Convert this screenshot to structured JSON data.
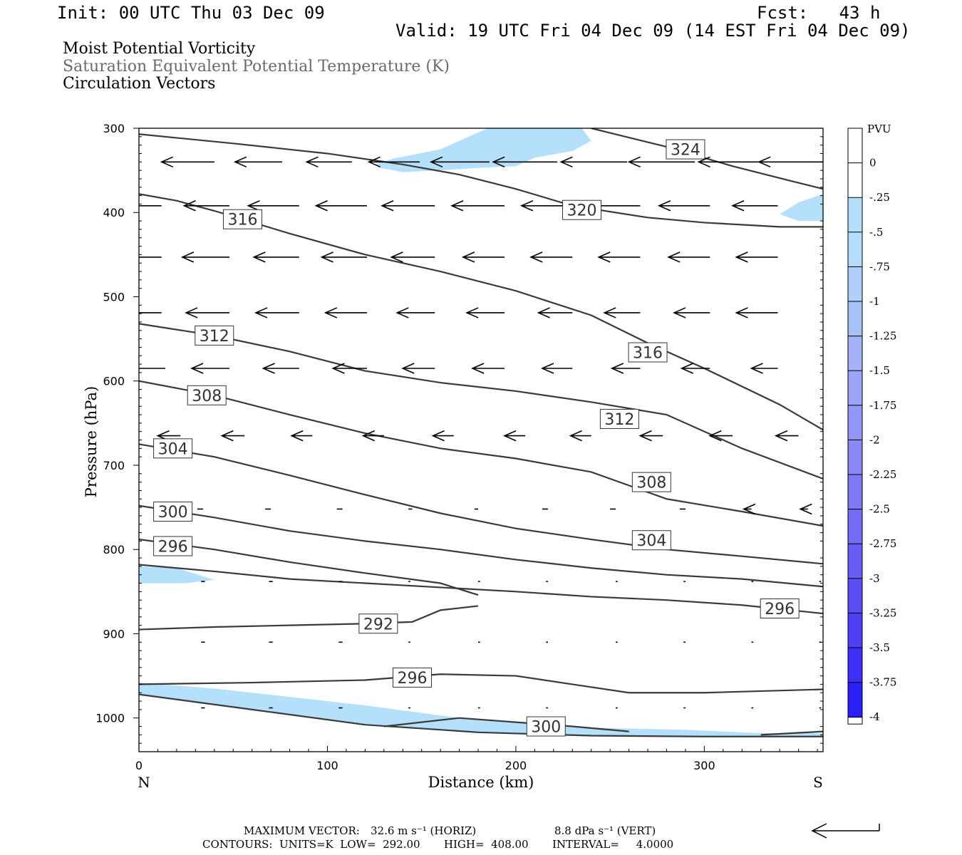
{
  "header": {
    "init": "Init: 00 UTC Thu 03 Dec 09",
    "fcst": "Fcst:   43 h",
    "valid": "Valid: 19 UTC Fri 04 Dec 09 (14 EST Fri 04 Dec 09)"
  },
  "titles": {
    "line1": "Moist Potential Vorticity",
    "line2": "Saturation Equivalent Potential Temperature (K)",
    "line3": "Circulation Vectors"
  },
  "footer": {
    "max_vector_label": "MAXIMUM VECTOR:",
    "max_vector_horiz": "32.6 m s⁻¹ (HORIZ)",
    "max_vector_vert": "8.8 dPa s⁻¹ (VERT)",
    "contours": "CONTOURS:  UNITS=K  LOW=  292.00       HIGH=  408.00       INTERVAL=     4.0000"
  },
  "colors": {
    "contour": "#3a3a3a",
    "pv_fill": "#b4e0fb",
    "arrow": "#000000",
    "title_gray": "#6a6a6a"
  },
  "chart_data": {
    "type": "cross-section",
    "xlabel": "Distance (km)",
    "ylabel": "Pressure (hPa)",
    "xlim": [
      0,
      363
    ],
    "ylim": [
      1040,
      300
    ],
    "x_ticks": [
      0,
      100,
      200,
      300
    ],
    "y_ticks": [
      300,
      400,
      500,
      600,
      700,
      800,
      900,
      1000
    ],
    "x_end_labels": {
      "left": "N",
      "right": "S"
    },
    "colorbar": {
      "unit": "PVU",
      "levels": [
        "0",
        "-.25",
        "-.5",
        "-.75",
        "-1",
        "-1.25",
        "-1.5",
        "-1.75",
        "-2",
        "-2.25",
        "-2.5",
        "-2.75",
        "-3",
        "-3.25",
        "-3.5",
        "-3.75",
        "-4"
      ],
      "colors": [
        "#ffffff",
        "#ffffff",
        "#b4e0fb",
        "#b4ddfb",
        "#b0cffa",
        "#a9c1f9",
        "#a2b3f8",
        "#9aa5f7",
        "#9297f6",
        "#8a88f5",
        "#8079f5",
        "#756bf4",
        "#695cf4",
        "#5c4df5",
        "#4e3ef6",
        "#3e2ff8",
        "#2a20fa",
        "#1010fc"
      ]
    },
    "contours": [
      {
        "label": "324",
        "points": [
          [
            240,
            300
          ],
          [
            280,
            322
          ],
          [
            315,
            345
          ],
          [
            345,
            362
          ],
          [
            363,
            372
          ]
        ],
        "label_at": [
          290,
          325
        ]
      },
      {
        "label": "320",
        "points": [
          [
            0,
            307
          ],
          [
            50,
            318
          ],
          [
            100,
            330
          ],
          [
            140,
            343
          ],
          [
            170,
            355
          ],
          [
            200,
            372
          ],
          [
            230,
            392
          ],
          [
            270,
            406
          ],
          [
            300,
            412
          ],
          [
            340,
            417
          ],
          [
            363,
            417
          ]
        ],
        "label_at": [
          235,
          397
        ]
      },
      {
        "label": "316",
        "points": [
          [
            0,
            378
          ],
          [
            20,
            386
          ],
          [
            40,
            398
          ],
          [
            80,
            425
          ],
          [
            120,
            450
          ],
          [
            160,
            470
          ],
          [
            200,
            493
          ],
          [
            240,
            522
          ],
          [
            270,
            555
          ],
          [
            300,
            585
          ],
          [
            340,
            628
          ],
          [
            363,
            658
          ]
        ],
        "label_at": [
          270,
          566
        ]
      },
      {
        "label": "316",
        "points": [],
        "label_at": [
          55,
          408
        ]
      },
      {
        "label": "312",
        "points": [
          [
            0,
            532
          ],
          [
            40,
            546
          ],
          [
            80,
            565
          ],
          [
            120,
            588
          ],
          [
            160,
            602
          ],
          [
            200,
            612
          ],
          [
            240,
            625
          ],
          [
            280,
            640
          ],
          [
            320,
            680
          ],
          [
            363,
            716
          ]
        ],
        "label_at": [
          40,
          546
        ]
      },
      {
        "label": "312",
        "points": [],
        "label_at": [
          255,
          645
        ]
      },
      {
        "label": "308",
        "points": [
          [
            0,
            600
          ],
          [
            40,
            617
          ],
          [
            80,
            640
          ],
          [
            120,
            662
          ],
          [
            160,
            680
          ],
          [
            200,
            692
          ],
          [
            240,
            708
          ],
          [
            280,
            740
          ],
          [
            320,
            755
          ],
          [
            363,
            772
          ]
        ],
        "label_at": [
          36,
          617
        ]
      },
      {
        "label": "308",
        "points": [],
        "label_at": [
          272,
          720
        ]
      },
      {
        "label": "304",
        "points": [
          [
            0,
            675
          ],
          [
            40,
            690
          ],
          [
            80,
            712
          ],
          [
            120,
            735
          ],
          [
            160,
            757
          ],
          [
            200,
            775
          ],
          [
            240,
            788
          ],
          [
            280,
            800
          ],
          [
            320,
            808
          ],
          [
            363,
            817
          ]
        ],
        "label_at": [
          18,
          680
        ]
      },
      {
        "label": "304",
        "points": [],
        "label_at": [
          272,
          789
        ]
      },
      {
        "label": "300",
        "points": [
          [
            0,
            748
          ],
          [
            40,
            762
          ],
          [
            80,
            778
          ],
          [
            120,
            790
          ],
          [
            160,
            800
          ],
          [
            200,
            812
          ],
          [
            240,
            822
          ],
          [
            280,
            830
          ],
          [
            320,
            835
          ],
          [
            363,
            844
          ]
        ],
        "label_at": [
          18,
          755
        ]
      },
      {
        "label": "296",
        "points": [
          [
            0,
            788
          ],
          [
            40,
            800
          ],
          [
            80,
            815
          ],
          [
            120,
            828
          ],
          [
            160,
            840
          ],
          [
            180,
            854
          ]
        ],
        "label_at": [
          18,
          796
        ]
      },
      {
        "label": "296",
        "points": [
          [
            0,
            818
          ],
          [
            40,
            826
          ],
          [
            80,
            835
          ],
          [
            120,
            840
          ],
          [
            160,
            845
          ],
          [
            200,
            850
          ],
          [
            240,
            856
          ],
          [
            280,
            860
          ],
          [
            320,
            866
          ],
          [
            363,
            876
          ]
        ],
        "label_at": [
          340,
          870
        ]
      },
      {
        "label": "292",
        "points": [
          [
            0,
            895
          ],
          [
            40,
            892
          ],
          [
            80,
            890
          ],
          [
            120,
            888
          ],
          [
            145,
            886
          ],
          [
            160,
            872
          ],
          [
            180,
            867
          ]
        ],
        "label_at": [
          127,
          888
        ]
      },
      {
        "label": "296",
        "points": [
          [
            0,
            960
          ],
          [
            60,
            958
          ],
          [
            120,
            955
          ],
          [
            160,
            948
          ],
          [
            200,
            950
          ],
          [
            230,
            960
          ],
          [
            260,
            970
          ],
          [
            300,
            970
          ],
          [
            363,
            966
          ]
        ],
        "label_at": [
          145,
          952
        ]
      },
      {
        "label": "300",
        "points": [
          [
            130,
            1010
          ],
          [
            170,
            1000
          ],
          [
            200,
            1005
          ],
          [
            230,
            1010
          ],
          [
            260,
            1016
          ]
        ],
        "label_at": [
          216,
          1010
        ]
      },
      {
        "label": "",
        "points": [
          [
            0,
            972
          ],
          [
            60,
            990
          ],
          [
            120,
            1008
          ],
          [
            180,
            1017
          ],
          [
            240,
            1021
          ],
          [
            300,
            1022
          ],
          [
            363,
            1022
          ]
        ],
        "label_at": null
      },
      {
        "label": "",
        "points": [
          [
            330,
            1020
          ],
          [
            363,
            1016
          ]
        ],
        "label_at": null
      }
    ],
    "pv_negative_regions": [
      [
        [
          125,
          343
        ],
        [
          135,
          336
        ],
        [
          160,
          325
        ],
        [
          165,
          320
        ],
        [
          185,
          300
        ],
        [
          235,
          300
        ],
        [
          240,
          315
        ],
        [
          230,
          327
        ],
        [
          210,
          335
        ],
        [
          200,
          345
        ],
        [
          180,
          347
        ],
        [
          160,
          350
        ],
        [
          140,
          352
        ],
        [
          128,
          347
        ]
      ],
      [
        [
          340,
          402
        ],
        [
          350,
          388
        ],
        [
          363,
          378
        ],
        [
          363,
          410
        ],
        [
          350,
          410
        ]
      ],
      [
        [
          0,
          820
        ],
        [
          20,
          822
        ],
        [
          40,
          836
        ],
        [
          25,
          840
        ],
        [
          0,
          840
        ]
      ],
      [
        [
          0,
          958
        ],
        [
          40,
          965
        ],
        [
          80,
          975
        ],
        [
          120,
          985
        ],
        [
          170,
          1000
        ],
        [
          230,
          1011
        ],
        [
          290,
          1014
        ],
        [
          330,
          1018
        ],
        [
          363,
          1018
        ],
        [
          363,
          1022
        ],
        [
          300,
          1022
        ],
        [
          240,
          1022
        ],
        [
          180,
          1018
        ],
        [
          120,
          1008
        ],
        [
          60,
          990
        ],
        [
          0,
          972
        ]
      ]
    ],
    "vectors": [
      {
        "x": [
          40,
          76,
          113,
          149,
          186,
          222,
          259,
          295,
          332,
          363
        ],
        "y": 340,
        "len": [
          -28,
          -25,
          -24,
          -27,
          -31,
          -34,
          -35,
          -35,
          -35,
          -34
        ]
      },
      {
        "x": [
          12,
          48,
          85,
          121,
          157,
          194,
          230,
          266,
          303,
          339
        ],
        "y": 392,
        "len": [
          -25,
          -24,
          -27,
          -27,
          -28,
          -28,
          -27,
          -27,
          -27,
          -24
        ]
      },
      {
        "x": [
          12,
          48,
          85,
          121,
          157,
          194,
          230,
          266,
          303,
          339
        ],
        "y": 453,
        "len": [
          -25,
          -25,
          -24,
          -24,
          -23,
          -22,
          -22,
          -22,
          -22,
          -22
        ]
      },
      {
        "x": [
          12,
          48,
          85,
          121,
          157,
          194,
          230,
          266,
          303,
          339
        ],
        "y": 519,
        "len": [
          -23,
          -23,
          -23,
          -22,
          -20,
          -20,
          -18,
          -19,
          -19,
          -22
        ]
      },
      {
        "x": [
          14,
          48,
          85,
          121,
          157,
          194,
          230,
          266,
          303,
          339
        ],
        "y": 585,
        "len": [
          -21,
          -20,
          -19,
          -18,
          -17,
          -17,
          -16,
          -15,
          -15,
          -14
        ]
      },
      {
        "x": [
          22,
          56,
          92,
          130,
          167,
          205,
          240,
          278,
          315,
          350
        ],
        "y": 665,
        "len": [
          -12,
          -12,
          -11,
          -11,
          -11,
          -11,
          -11,
          -12,
          -12,
          -12
        ]
      },
      {
        "x": [
          34,
          70,
          108,
          145,
          180,
          217,
          253,
          290,
          325,
          355
        ],
        "y": 752,
        "len": [
          -3,
          -3,
          -3,
          -2,
          -2,
          -3,
          -3,
          -3,
          -4,
          -4
        ]
      },
      {
        "x": [
          35,
          71,
          108,
          144,
          181,
          217,
          254,
          290,
          326,
          362
        ],
        "y": 838,
        "len": [
          -2,
          -2,
          -2,
          -1,
          -1,
          -1,
          -1,
          -1,
          -1,
          -1
        ]
      },
      {
        "x": [
          35,
          71,
          108,
          144,
          181,
          217,
          254,
          290,
          326,
          362
        ],
        "y": 910,
        "len": [
          -2,
          -2,
          -2,
          -1,
          -1,
          -1,
          -1,
          -1,
          -1,
          -1
        ]
      },
      {
        "x": [
          35,
          71,
          108,
          144,
          181,
          217,
          254,
          290,
          326,
          362
        ],
        "y": 988,
        "len": [
          -2,
          -2,
          -2,
          -1,
          -1,
          -1,
          -1,
          -1,
          -1,
          -1
        ]
      }
    ]
  }
}
